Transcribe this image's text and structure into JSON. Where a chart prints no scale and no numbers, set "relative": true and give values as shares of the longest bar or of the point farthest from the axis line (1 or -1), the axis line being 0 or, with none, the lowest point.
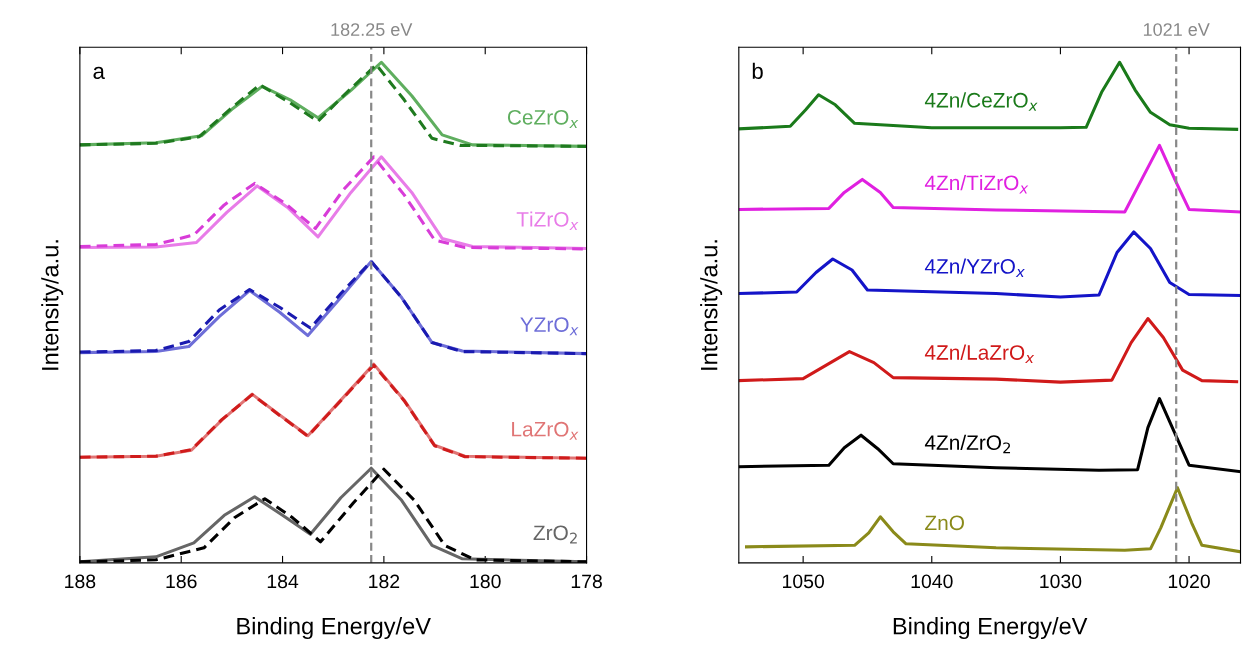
{
  "chart_data": [
    {
      "type": "line",
      "relative": true,
      "xlabel": "Binding Energy/eV",
      "ylabel": "Intensity/a.u.",
      "xlim": [
        188,
        178
      ],
      "xticks": [
        188,
        186,
        184,
        182,
        180,
        178
      ],
      "grid": false,
      "legend": false,
      "annotations": [
        "a"
      ],
      "ref_lines": [
        {
          "axis": "x",
          "value": 182.25,
          "label": "182.25 eV",
          "color": "#888888",
          "line_style": "dashed"
        }
      ],
      "series": [
        {
          "name": "CeZrO$_{x}$",
          "color": "#5fae5f",
          "line_style": "solid",
          "x": [
            188,
            186.5,
            185.6,
            185.0,
            184.4,
            183.85,
            183.3,
            182.65,
            182.05,
            181.45,
            180.85,
            180.25,
            178
          ],
          "values": [
            0.835,
            0.839,
            0.853,
            0.906,
            0.952,
            0.925,
            0.889,
            0.944,
            1.0,
            0.933,
            0.855,
            0.835,
            0.832
          ]
        },
        {
          "color": "#1f7a1f",
          "line_style": "dashed",
          "x": [
            188,
            186.5,
            185.65,
            185.05,
            184.45,
            183.9,
            183.3,
            182.75,
            182.15,
            181.6,
            181.05,
            180.5,
            178
          ],
          "values": [
            0.835,
            0.838,
            0.851,
            0.905,
            0.955,
            0.922,
            0.882,
            0.938,
            0.995,
            0.925,
            0.848,
            0.834,
            0.832
          ]
        },
        {
          "name": "TiZrO$_{x}$",
          "color": "#e87ce8",
          "line_style": "solid",
          "x": [
            188,
            186.5,
            185.7,
            185.1,
            184.5,
            183.9,
            183.3,
            182.65,
            182.05,
            181.45,
            180.85,
            180.25,
            178
          ],
          "values": [
            0.63,
            0.631,
            0.64,
            0.7,
            0.753,
            0.71,
            0.651,
            0.74,
            0.811,
            0.74,
            0.648,
            0.632,
            0.628
          ]
        },
        {
          "color": "#d83cd8",
          "line_style": "dashed",
          "x": [
            188,
            186.5,
            185.75,
            185.15,
            184.55,
            183.95,
            183.35,
            182.8,
            182.2,
            181.6,
            181.0,
            180.4,
            178
          ],
          "values": [
            0.632,
            0.636,
            0.655,
            0.715,
            0.758,
            0.718,
            0.668,
            0.745,
            0.811,
            0.735,
            0.645,
            0.63,
            0.627
          ]
        },
        {
          "name": "YZrO$_{x}$",
          "color": "#6e6ed8",
          "line_style": "solid",
          "x": [
            188,
            186.5,
            185.85,
            185.25,
            184.65,
            184.05,
            183.5,
            182.85,
            182.25,
            181.65,
            181.05,
            180.45,
            178
          ],
          "values": [
            0.42,
            0.422,
            0.432,
            0.492,
            0.544,
            0.5,
            0.454,
            0.53,
            0.602,
            0.53,
            0.44,
            0.423,
            0.418
          ]
        },
        {
          "color": "#1a1ab0",
          "line_style": "dashed",
          "x": [
            188,
            186.5,
            185.85,
            185.25,
            184.65,
            184.05,
            183.45,
            182.85,
            182.25,
            181.65,
            181.05,
            180.45,
            178
          ],
          "values": [
            0.421,
            0.424,
            0.442,
            0.505,
            0.546,
            0.51,
            0.469,
            0.538,
            0.602,
            0.53,
            0.44,
            0.422,
            0.418
          ]
        },
        {
          "name": "LaZrO$_{x}$",
          "color": "#e07575",
          "line_style": "solid",
          "x": [
            188,
            186.5,
            185.8,
            185.2,
            184.6,
            184.05,
            183.5,
            182.85,
            182.2,
            181.6,
            181.0,
            180.4,
            178
          ],
          "values": [
            0.211,
            0.213,
            0.225,
            0.285,
            0.337,
            0.295,
            0.254,
            0.325,
            0.397,
            0.325,
            0.235,
            0.213,
            0.209
          ]
        },
        {
          "color": "#d01c1c",
          "line_style": "dashed",
          "x": [
            188,
            186.5,
            185.8,
            185.2,
            184.6,
            184.05,
            183.5,
            182.85,
            182.2,
            181.6,
            181.0,
            180.4,
            178
          ],
          "values": [
            0.211,
            0.213,
            0.226,
            0.286,
            0.336,
            0.294,
            0.253,
            0.324,
            0.395,
            0.324,
            0.234,
            0.212,
            0.209
          ]
        },
        {
          "name": "ZrO$_{2}$",
          "color": "#666666",
          "line_style": "solid",
          "x": [
            188,
            186.5,
            185.75,
            185.15,
            184.55,
            184.0,
            183.45,
            182.85,
            182.25,
            181.65,
            181.05,
            180.45,
            178
          ],
          "values": [
            0.002,
            0.012,
            0.04,
            0.095,
            0.132,
            0.095,
            0.057,
            0.13,
            0.189,
            0.125,
            0.035,
            0.008,
            0.002
          ]
        },
        {
          "color": "#000000",
          "line_style": "dashed",
          "x": [
            188,
            186.5,
            185.55,
            184.95,
            184.35,
            183.8,
            183.25,
            182.6,
            182.0,
            181.4,
            180.8,
            180.2,
            178
          ],
          "values": [
            0.002,
            0.006,
            0.03,
            0.09,
            0.128,
            0.09,
            0.042,
            0.12,
            0.187,
            0.125,
            0.035,
            0.006,
            0.002
          ]
        }
      ]
    },
    {
      "type": "line",
      "relative": true,
      "xlabel": "Binding Energy/eV",
      "ylabel": "Intensity/a.u.",
      "xlim": [
        1055,
        1016
      ],
      "xticks": [
        1050,
        1040,
        1030,
        1020
      ],
      "grid": false,
      "legend": false,
      "annotations": [
        "b"
      ],
      "ref_lines": [
        {
          "axis": "x",
          "value": 1021,
          "label": "1021 eV",
          "color": "#888888",
          "line_style": "dashed"
        }
      ],
      "series": [
        {
          "name": "4Zn/CeZrO$_{x}$",
          "color": "#1a7a1a",
          "line_style": "solid",
          "x": [
            1055,
            1051,
            1049.8,
            1048.8,
            1047.5,
            1046,
            1040,
            1030,
            1028,
            1026.8,
            1025.4,
            1024.2,
            1023,
            1021.5,
            1020,
            1016.3
          ],
          "values": [
            0.867,
            0.872,
            0.905,
            0.935,
            0.915,
            0.878,
            0.869,
            0.869,
            0.87,
            0.94,
            1.0,
            0.945,
            0.9,
            0.875,
            0.868,
            0.866
          ]
        },
        {
          "name": "4Zn/TiZrO$_{x}$",
          "color": "#e020e0",
          "line_style": "solid",
          "x": [
            1055,
            1048,
            1046.8,
            1045.4,
            1044,
            1043,
            1035,
            1025,
            1023.6,
            1022.3,
            1021,
            1020,
            1016
          ],
          "values": [
            0.706,
            0.708,
            0.74,
            0.766,
            0.74,
            0.71,
            0.705,
            0.701,
            0.77,
            0.834,
            0.76,
            0.706,
            0.701
          ]
        },
        {
          "name": "4Zn/YZrO$_{x}$",
          "color": "#1414c8",
          "line_style": "solid",
          "x": [
            1055,
            1050.5,
            1049,
            1047.7,
            1046.2,
            1045,
            1035,
            1030,
            1027,
            1025.6,
            1024.3,
            1023,
            1021.5,
            1020,
            1016
          ],
          "values": [
            0.538,
            0.541,
            0.58,
            0.607,
            0.585,
            0.545,
            0.538,
            0.531,
            0.535,
            0.62,
            0.661,
            0.628,
            0.56,
            0.536,
            0.534
          ]
        },
        {
          "name": "4Zn/LaZrO$_{x}$",
          "color": "#d01a1a",
          "line_style": "solid",
          "x": [
            1055,
            1050,
            1048,
            1046.4,
            1044.5,
            1043,
            1035,
            1030,
            1026,
            1024.5,
            1023.2,
            1022,
            1020.5,
            1019,
            1016.3
          ],
          "values": [
            0.364,
            0.368,
            0.398,
            0.422,
            0.4,
            0.37,
            0.367,
            0.361,
            0.365,
            0.44,
            0.488,
            0.45,
            0.385,
            0.364,
            0.362
          ]
        },
        {
          "name": "4Zn/ZrO$_{2}$",
          "color": "#000000",
          "line_style": "solid",
          "x": [
            1055,
            1048,
            1046.8,
            1045.5,
            1044.2,
            1043,
            1035,
            1027,
            1024,
            1023.2,
            1022.3,
            1021.3,
            1020,
            1016
          ],
          "values": [
            0.192,
            0.195,
            0.23,
            0.255,
            0.228,
            0.198,
            0.19,
            0.185,
            0.186,
            0.27,
            0.328,
            0.27,
            0.195,
            0.182
          ]
        },
        {
          "name": "ZnO",
          "color": "#8a8a1a",
          "line_style": "solid",
          "x": [
            1054.4,
            1046,
            1044.9,
            1044,
            1043,
            1042,
            1035,
            1025,
            1023,
            1022.2,
            1020.9,
            1019.8,
            1019,
            1016
          ],
          "values": [
            0.032,
            0.035,
            0.06,
            0.092,
            0.062,
            0.038,
            0.03,
            0.025,
            0.028,
            0.07,
            0.15,
            0.08,
            0.035,
            0.022
          ]
        }
      ]
    }
  ]
}
